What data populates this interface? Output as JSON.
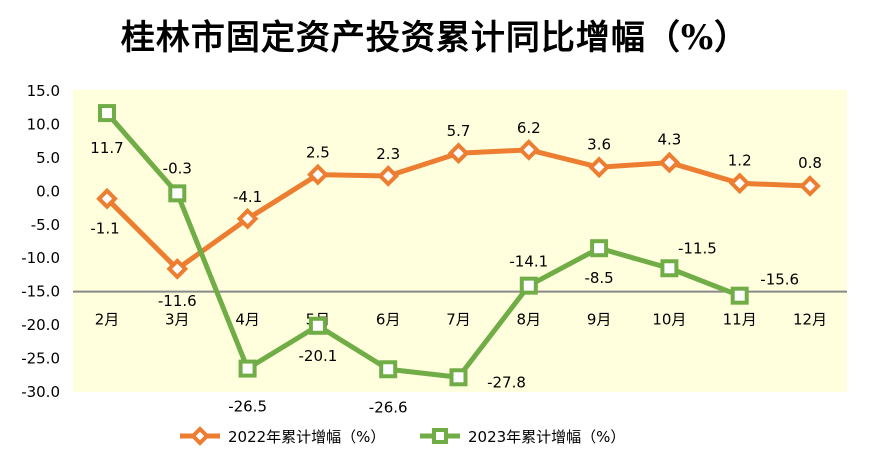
{
  "chart_data": {
    "type": "line",
    "title": "桂林市固定资产投资累计同比增幅（%）",
    "xlabel": "",
    "ylabel": "",
    "categories": [
      "2月",
      "3月",
      "4月",
      "5月",
      "6月",
      "7月",
      "8月",
      "9月",
      "10月",
      "11月",
      "12月"
    ],
    "ylim": [
      -30,
      15
    ],
    "yticks": [
      "15.0",
      "10.0",
      "5.0",
      "0.0",
      "-5.0",
      "-10.0",
      "-15.0",
      "-20.0",
      "-25.0",
      "-30.0"
    ],
    "ytick_values": [
      15,
      10,
      5,
      0,
      -5,
      -10,
      -15,
      -20,
      -25,
      -30
    ],
    "x_axis_crosses_at": -15,
    "grid": false,
    "legend_position": "bottom",
    "series": [
      {
        "name": "2022年累计增幅（%）",
        "color": "#ED7D31",
        "marker": "diamond",
        "values": [
          -1.1,
          -11.6,
          -4.1,
          2.5,
          2.3,
          5.7,
          6.2,
          3.6,
          4.3,
          1.2,
          0.8
        ],
        "labels": [
          "-1.1",
          "-11.6",
          "-4.1",
          "2.5",
          "2.3",
          "5.7",
          "6.2",
          "3.6",
          "4.3",
          "1.2",
          "0.8"
        ]
      },
      {
        "name": "2023年累计增幅（%）",
        "color": "#70AD47",
        "marker": "square",
        "values": [
          11.7,
          -0.3,
          -26.5,
          -20.1,
          -26.6,
          -27.8,
          -14.1,
          -8.5,
          -11.5,
          -15.6,
          null
        ],
        "labels": [
          "11.7",
          "-0.3",
          "-26.5",
          "-20.1",
          "-26.6",
          "-27.8",
          "-14.1",
          "-8.5",
          "-11.5",
          "-15.6",
          null
        ]
      }
    ],
    "plot_background": "#FFFFDD",
    "axis_color": "#898989"
  }
}
